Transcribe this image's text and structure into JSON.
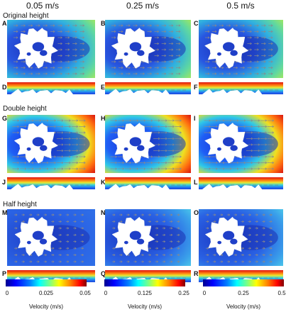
{
  "columns": [
    "0.05 m/s",
    "0.25 m/s",
    "0.5 m/s"
  ],
  "sections": [
    "Original height",
    "Double height",
    "Half height"
  ],
  "panel_letters": [
    "A",
    "B",
    "C",
    "D",
    "E",
    "F",
    "G",
    "H",
    "I",
    "J",
    "K",
    "L",
    "M",
    "N",
    "O",
    "P",
    "Q",
    "R"
  ],
  "colorbars": [
    {
      "ticks": [
        "0",
        "0.025",
        "0.05"
      ],
      "label": "Velocity (m/s)"
    },
    {
      "ticks": [
        "0",
        "0.125",
        "0.25"
      ],
      "label": "Velocity (m/s)"
    },
    {
      "ticks": [
        "0",
        "0.25",
        "0.5"
      ],
      "label": "Velocity (m/s)"
    }
  ]
}
